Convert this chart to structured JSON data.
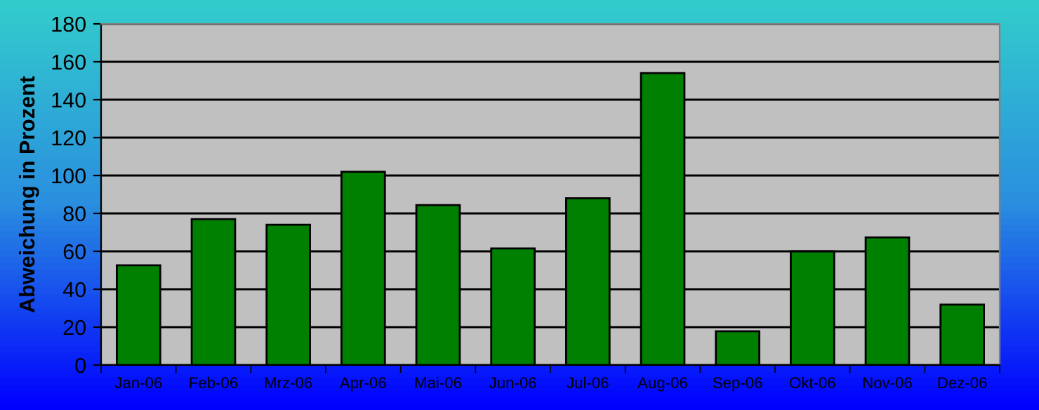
{
  "chart_data": {
    "type": "bar",
    "ylabel": "Abweichung in Prozent",
    "categories": [
      "Jan-06",
      "Feb-06",
      "Mrz-06",
      "Apr-06",
      "Mai-06",
      "Jun-06",
      "Jul-06",
      "Aug-06",
      "Sep-06",
      "Okt-06",
      "Nov-06",
      "Dez-06"
    ],
    "values": [
      52.6,
      77,
      74,
      102,
      84.4,
      61.5,
      88,
      154,
      17.8,
      60,
      67.4,
      31.9
    ],
    "color": "#008000",
    "ylim": [
      0,
      180
    ],
    "yticks": [
      0,
      20,
      40,
      60,
      80,
      100,
      120,
      140,
      160,
      180
    ],
    "grid": "y",
    "legend": false
  }
}
